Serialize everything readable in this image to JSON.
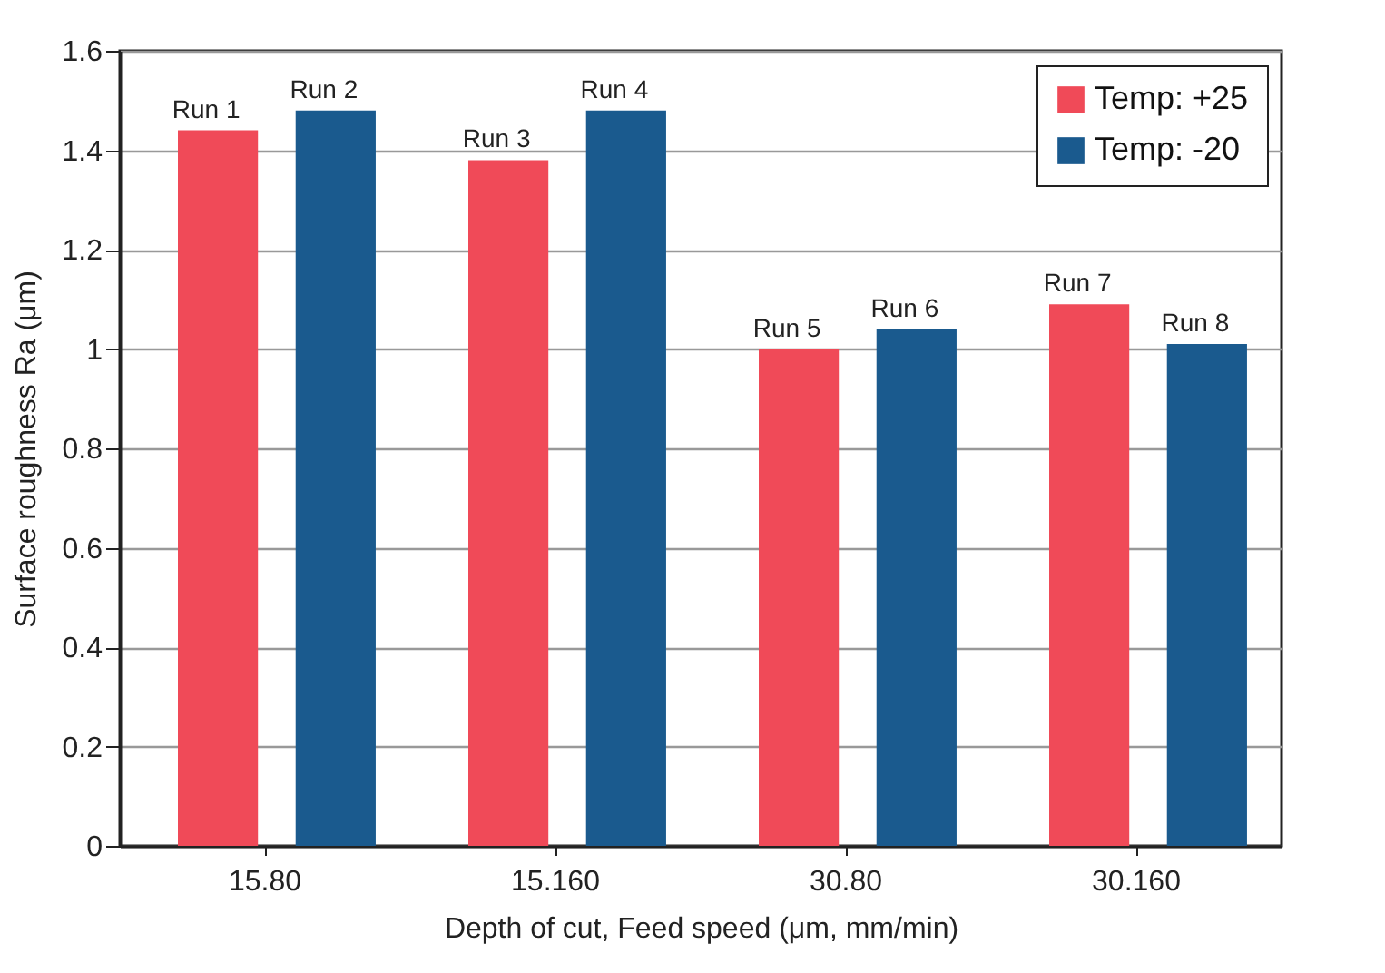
{
  "chart_data": {
    "type": "bar",
    "xlabel": "Depth of cut, Feed speed (μm, mm/min)",
    "ylabel": "Surface roughness Ra (μm)",
    "categories": [
      "15.80",
      "15.160",
      "30.80",
      "30.160"
    ],
    "series": [
      {
        "name": "Temp: +25",
        "color": "#f04a58",
        "values": [
          1.44,
          1.38,
          1.0,
          1.09
        ],
        "value_labels": [
          "Run 1",
          "Run 3",
          "Run 5",
          "Run 7"
        ]
      },
      {
        "name": "Temp: -20",
        "color": "#1a5a8e",
        "values": [
          1.48,
          1.48,
          1.04,
          1.01
        ],
        "value_labels": [
          "Run 2",
          "Run 4",
          "Run 6",
          "Run 8"
        ]
      }
    ],
    "ylim": [
      0,
      1.6
    ],
    "yticks": [
      0,
      0.2,
      0.4,
      0.6,
      0.8,
      1,
      1.2,
      1.4,
      1.6
    ],
    "grid": "y",
    "legend": "top right"
  }
}
